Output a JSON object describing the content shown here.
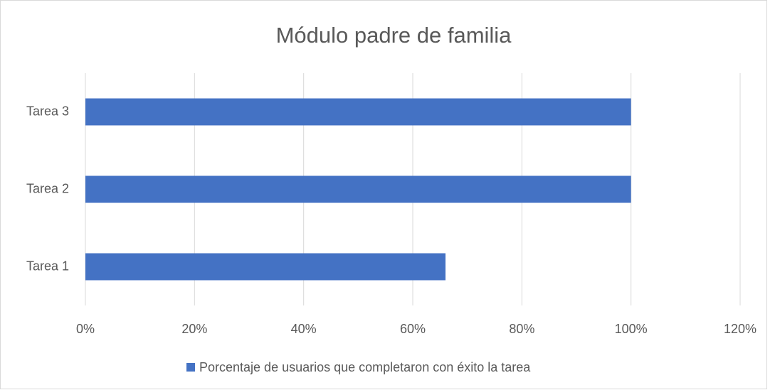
{
  "chart_data": {
    "type": "barh",
    "title": "Módulo padre de familia",
    "categories": [
      "Tarea 1",
      "Tarea 2",
      "Tarea 3"
    ],
    "series": [
      {
        "name": "Porcentaje de usuarios que completaron con éxito la tarea",
        "color": "#4472c4",
        "values": [
          66,
          100,
          100
        ]
      }
    ],
    "xlim": [
      0,
      120
    ],
    "xticks": [
      {
        "value": 0,
        "label": "0%"
      },
      {
        "value": 20,
        "label": "20%"
      },
      {
        "value": 40,
        "label": "40%"
      },
      {
        "value": 60,
        "label": "60%"
      },
      {
        "value": 80,
        "label": "80%"
      },
      {
        "value": 100,
        "label": "100%"
      },
      {
        "value": 120,
        "label": "120%"
      }
    ],
    "grid": true,
    "legend": "bottom"
  }
}
